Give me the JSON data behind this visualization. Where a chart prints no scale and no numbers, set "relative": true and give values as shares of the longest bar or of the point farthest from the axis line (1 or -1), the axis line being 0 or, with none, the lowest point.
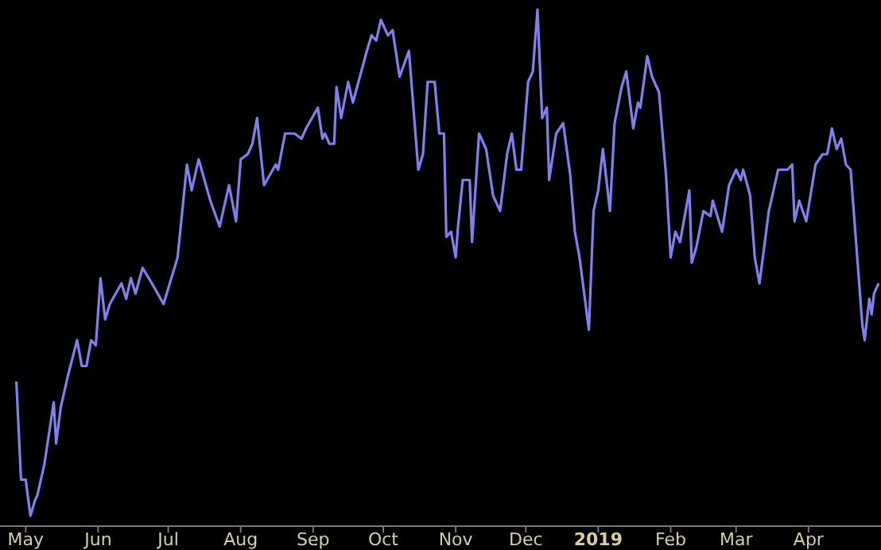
{
  "chart_data": {
    "type": "line",
    "relative": true,
    "grid": false,
    "marker": "none",
    "line_style": "solid",
    "xlim": [
      "2018-04-20",
      "2019-05-02"
    ],
    "xticks": [
      {
        "value": "2018-05-01",
        "label": "May"
      },
      {
        "value": "2018-06-01",
        "label": "Jun"
      },
      {
        "value": "2018-07-01",
        "label": "Jul"
      },
      {
        "value": "2018-08-01",
        "label": "Aug"
      },
      {
        "value": "2018-09-01",
        "label": "Sep"
      },
      {
        "value": "2018-10-01",
        "label": "Oct"
      },
      {
        "value": "2018-11-01",
        "label": "Nov"
      },
      {
        "value": "2018-12-01",
        "label": "Dec"
      },
      {
        "value": "2019-01-01",
        "label": "2019"
      },
      {
        "value": "2019-02-01",
        "label": "Feb"
      },
      {
        "value": "2019-03-01",
        "label": "Mar"
      },
      {
        "value": "2019-04-01",
        "label": "Apr"
      }
    ],
    "x": [
      "2018-04-27",
      "2018-04-29",
      "2018-05-01",
      "2018-05-03",
      "2018-05-05",
      "2018-05-06",
      "2018-05-09",
      "2018-05-13",
      "2018-05-14",
      "2018-05-16",
      "2018-05-19",
      "2018-05-23",
      "2018-05-25",
      "2018-05-27",
      "2018-05-29",
      "2018-05-31",
      "2018-06-02",
      "2018-06-04",
      "2018-06-06",
      "2018-06-11",
      "2018-06-13",
      "2018-06-15",
      "2018-06-17",
      "2018-06-20",
      "2018-06-24",
      "2018-06-29",
      "2018-07-05",
      "2018-07-09",
      "2018-07-11",
      "2018-07-14",
      "2018-07-19",
      "2018-07-23",
      "2018-07-27",
      "2018-07-30",
      "2018-08-01",
      "2018-08-04",
      "2018-08-06",
      "2018-08-08",
      "2018-08-11",
      "2018-08-16",
      "2018-08-17",
      "2018-08-20",
      "2018-08-24",
      "2018-08-27",
      "2018-08-29",
      "2018-09-03",
      "2018-09-05",
      "2018-09-06",
      "2018-09-08",
      "2018-09-10",
      "2018-09-11",
      "2018-09-13",
      "2018-09-16",
      "2018-09-18",
      "2018-09-24",
      "2018-09-26",
      "2018-09-28",
      "2018-09-30",
      "2018-10-03",
      "2018-10-05",
      "2018-10-08",
      "2018-10-12",
      "2018-10-16",
      "2018-10-18",
      "2018-10-20",
      "2018-10-23",
      "2018-10-25",
      "2018-10-27",
      "2018-10-28",
      "2018-10-30",
      "2018-11-01",
      "2018-11-02",
      "2018-11-04",
      "2018-11-07",
      "2018-11-08",
      "2018-11-09",
      "2018-11-11",
      "2018-11-14",
      "2018-11-17",
      "2018-11-20",
      "2018-11-23",
      "2018-11-25",
      "2018-11-27",
      "2018-11-29",
      "2018-12-02",
      "2018-12-04",
      "2018-12-06",
      "2018-12-08",
      "2018-12-10",
      "2018-12-11",
      "2018-12-14",
      "2018-12-17",
      "2018-12-20",
      "2018-12-22",
      "2018-12-24",
      "2018-12-28",
      "2018-12-30",
      "2019-01-01",
      "2019-01-03",
      "2019-01-06",
      "2019-01-08",
      "2019-01-11",
      "2019-01-13",
      "2019-01-16",
      "2019-01-18",
      "2019-01-19",
      "2019-01-22",
      "2019-01-24",
      "2019-01-27",
      "2019-01-30",
      "2019-02-01",
      "2019-02-03",
      "2019-02-05",
      "2019-02-09",
      "2019-02-10",
      "2019-02-12",
      "2019-02-15",
      "2019-02-18",
      "2019-02-19",
      "2019-02-21",
      "2019-02-23",
      "2019-02-26",
      "2019-03-01",
      "2019-03-03",
      "2019-03-04",
      "2019-03-07",
      "2019-03-09",
      "2019-03-11",
      "2019-03-13",
      "2019-03-15",
      "2019-03-19",
      "2019-03-23",
      "2019-03-25",
      "2019-03-26",
      "2019-03-28",
      "2019-03-31",
      "2019-04-04",
      "2019-04-07",
      "2019-04-09",
      "2019-04-11",
      "2019-04-13",
      "2019-04-15",
      "2019-04-17",
      "2019-04-19",
      "2019-04-24",
      "2019-04-25",
      "2019-04-27",
      "2019-04-28",
      "2019-04-29",
      "2019-05-01"
    ],
    "series": [
      {
        "color": "#8080f0",
        "values": [
          0.28,
          0.09,
          0.09,
          0.02,
          0.05,
          0.06,
          0.12,
          0.24,
          0.16,
          0.23,
          0.29,
          0.36,
          0.31,
          0.31,
          0.36,
          0.35,
          0.48,
          0.4,
          0.43,
          0.47,
          0.44,
          0.48,
          0.45,
          0.5,
          0.47,
          0.43,
          0.52,
          0.7,
          0.65,
          0.71,
          0.63,
          0.58,
          0.66,
          0.59,
          0.71,
          0.72,
          0.74,
          0.79,
          0.66,
          0.7,
          0.69,
          0.76,
          0.76,
          0.75,
          0.77,
          0.81,
          0.75,
          0.76,
          0.74,
          0.74,
          0.85,
          0.79,
          0.86,
          0.82,
          0.92,
          0.95,
          0.94,
          0.98,
          0.95,
          0.96,
          0.87,
          0.92,
          0.69,
          0.72,
          0.86,
          0.86,
          0.76,
          0.76,
          0.56,
          0.57,
          0.52,
          0.58,
          0.67,
          0.67,
          0.55,
          0.62,
          0.76,
          0.73,
          0.64,
          0.61,
          0.72,
          0.76,
          0.69,
          0.69,
          0.86,
          0.88,
          1.0,
          0.79,
          0.81,
          0.67,
          0.76,
          0.78,
          0.68,
          0.57,
          0.52,
          0.38,
          0.61,
          0.65,
          0.73,
          0.61,
          0.78,
          0.85,
          0.88,
          0.77,
          0.82,
          0.81,
          0.91,
          0.87,
          0.84,
          0.68,
          0.52,
          0.57,
          0.55,
          0.65,
          0.51,
          0.54,
          0.61,
          0.6,
          0.63,
          0.6,
          0.57,
          0.66,
          0.69,
          0.67,
          0.69,
          0.64,
          0.52,
          0.47,
          0.54,
          0.61,
          0.69,
          0.69,
          0.7,
          0.59,
          0.63,
          0.59,
          0.7,
          0.72,
          0.72,
          0.77,
          0.73,
          0.75,
          0.7,
          0.69,
          0.39,
          0.36,
          0.44,
          0.41,
          0.45,
          0.47
        ]
      }
    ]
  }
}
